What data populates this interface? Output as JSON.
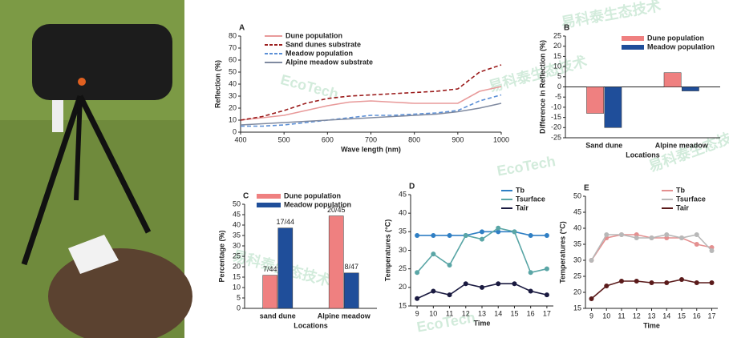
{
  "watermark": [
    "易科泰生态技术",
    "EcoTech"
  ],
  "chart_data": [
    {
      "type": "line",
      "label": "A",
      "ylabel": "Reflection (%)",
      "xlabel": "Wave length (nm)",
      "x": [
        400,
        450,
        500,
        550,
        600,
        650,
        700,
        750,
        800,
        850,
        900,
        950,
        1000
      ],
      "xlim": [
        400,
        1000
      ],
      "xticks": [
        400,
        500,
        600,
        700,
        800,
        900,
        1000
      ],
      "ylim": [
        0,
        80
      ],
      "yticks": [
        0,
        10,
        20,
        30,
        40,
        50,
        60,
        70,
        80
      ],
      "series": [
        {
          "name": "Dune population",
          "color": "#e89a9a",
          "dash": false,
          "values": [
            10,
            12,
            14,
            18,
            22,
            25,
            26,
            25,
            24,
            24,
            24,
            34,
            38
          ]
        },
        {
          "name": "Sand dunes substrate",
          "color": "#9b1c1c",
          "dash": true,
          "values": [
            10,
            13,
            18,
            24,
            28,
            30,
            31,
            32,
            33,
            34,
            36,
            50,
            56
          ]
        },
        {
          "name": "Meadow population",
          "color": "#5b8fd6",
          "dash": true,
          "values": [
            5,
            5,
            6,
            8,
            10,
            12,
            14,
            14,
            15,
            16,
            18,
            26,
            31
          ]
        },
        {
          "name": "Alpine meadow substrate",
          "color": "#7f8aa0",
          "dash": false,
          "values": [
            6,
            7,
            8,
            9,
            10,
            11,
            12,
            13,
            14,
            15,
            17,
            20,
            24
          ]
        }
      ]
    },
    {
      "type": "bar",
      "label": "B",
      "ylabel": "Difference in Reflection (%)",
      "xlabel": "Locations",
      "categories": [
        "Sand dune",
        "Alpine meadow"
      ],
      "ylim": [
        -25,
        25
      ],
      "yticks": [
        -25,
        -20,
        -15,
        -10,
        -5,
        0,
        5,
        10,
        15,
        20,
        25
      ],
      "series": [
        {
          "name": "Dune population",
          "color": "#ef8080",
          "values": [
            -13,
            7
          ]
        },
        {
          "name": "Meadow population",
          "color": "#1f4e9a",
          "values": [
            -20,
            -2
          ]
        }
      ]
    },
    {
      "type": "bar",
      "label": "C",
      "ylabel": "Percentage (%)",
      "xlabel": "Locations",
      "categories": [
        "sand dune",
        "Alpine meadow"
      ],
      "ylim": [
        0,
        50
      ],
      "yticks": [
        0,
        5,
        10,
        15,
        20,
        25,
        30,
        35,
        40,
        45,
        50
      ],
      "series": [
        {
          "name": "Dune population",
          "color": "#ef8080",
          "values": [
            15.9,
            44.4
          ],
          "value_labels": [
            "7/44",
            "20/45"
          ]
        },
        {
          "name": "Meadow population",
          "color": "#1f4e9a",
          "values": [
            38.6,
            17.0
          ],
          "value_labels": [
            "17/44",
            "8/47"
          ]
        }
      ]
    },
    {
      "type": "line",
      "label": "D",
      "ylabel": "Temperatures (°C)",
      "xlabel": "Time",
      "x": [
        9,
        10,
        11,
        12,
        13,
        14,
        15,
        16,
        17
      ],
      "xlim": [
        8.6,
        17.4
      ],
      "xticks": [
        9,
        10,
        11,
        12,
        13,
        14,
        15,
        16,
        17
      ],
      "ylim": [
        15,
        45
      ],
      "yticks": [
        15,
        20,
        25,
        30,
        35,
        40,
        45
      ],
      "series": [
        {
          "name": "Tb",
          "color": "#2f7fc4",
          "marker": true,
          "values": [
            34,
            34,
            34,
            34,
            35,
            35,
            35,
            34,
            34
          ]
        },
        {
          "name": "Tsurface",
          "color": "#5aa6a6",
          "marker": true,
          "values": [
            24,
            29,
            26,
            34,
            33,
            36,
            35,
            24,
            25
          ]
        },
        {
          "name": "Tair",
          "color": "#1a1a40",
          "marker": true,
          "values": [
            17,
            19,
            18,
            21,
            20,
            21,
            21,
            19,
            18
          ]
        }
      ]
    },
    {
      "type": "line",
      "label": "E",
      "ylabel": "Temperatures (°C)",
      "xlabel": "Time",
      "x": [
        9,
        10,
        11,
        12,
        13,
        14,
        15,
        16,
        17
      ],
      "xlim": [
        8.6,
        17.4
      ],
      "xticks": [
        9,
        10,
        11,
        12,
        13,
        14,
        15,
        16,
        17
      ],
      "ylim": [
        15,
        50
      ],
      "yticks": [
        15,
        20,
        25,
        30,
        35,
        40,
        45,
        50
      ],
      "series": [
        {
          "name": "Tb",
          "color": "#e49090",
          "marker": true,
          "values": [
            30,
            37,
            38,
            38,
            37,
            37,
            37,
            35,
            34
          ]
        },
        {
          "name": "Tsurface",
          "color": "#b8b8b8",
          "marker": true,
          "values": [
            30,
            38,
            38,
            37,
            37,
            38,
            37,
            38,
            33
          ]
        },
        {
          "name": "Tair",
          "color": "#5a1a1a",
          "marker": true,
          "values": [
            18,
            22,
            23.5,
            23.5,
            23,
            23,
            24,
            23,
            23
          ]
        }
      ]
    }
  ]
}
